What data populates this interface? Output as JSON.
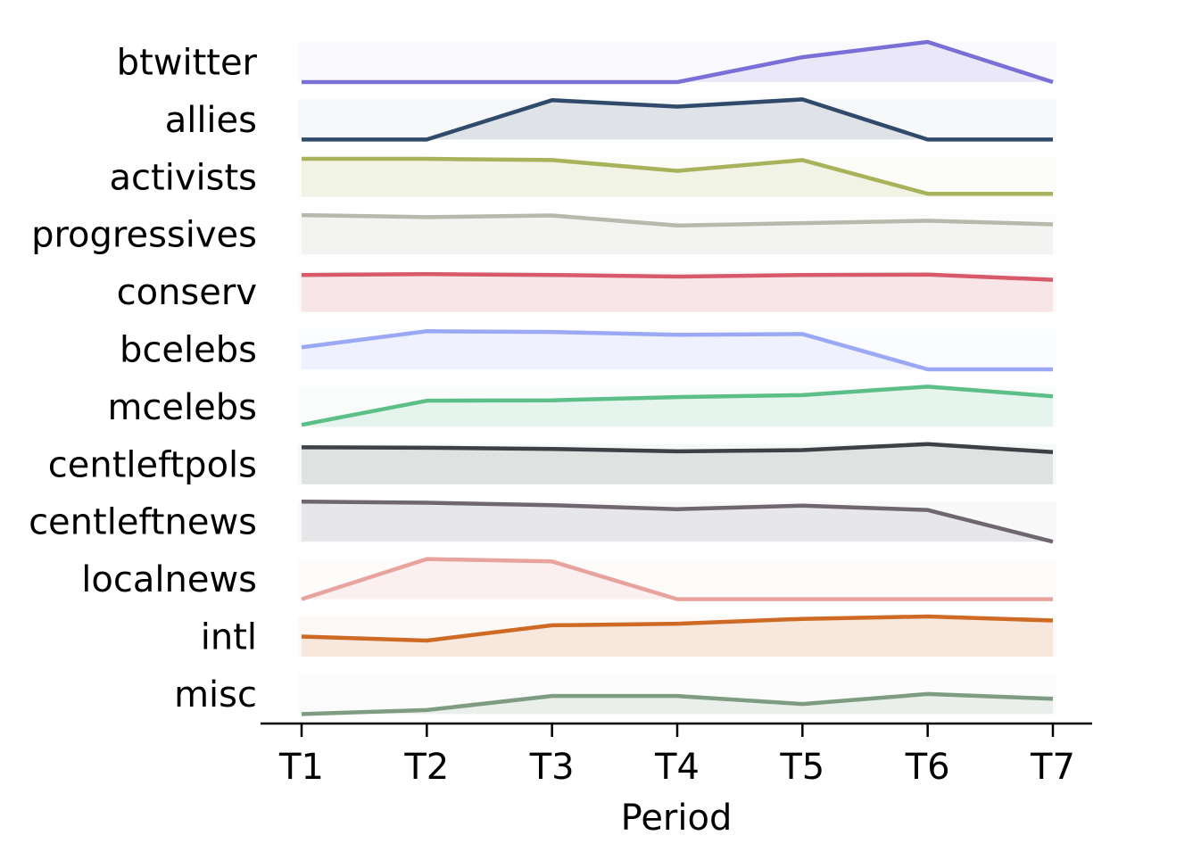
{
  "chart_data": {
    "type": "ridgeline-line",
    "xlabel": "Period",
    "categories": [
      "T1",
      "T2",
      "T3",
      "T4",
      "T5",
      "T6",
      "T7"
    ],
    "ylim": [
      0,
      1
    ],
    "series": [
      {
        "name": "btwitter",
        "color": "#7a6fd6",
        "values": [
          0.0,
          0.0,
          0.0,
          0.0,
          0.62,
          1.0,
          0.0
        ]
      },
      {
        "name": "allies",
        "color": "#2f4a6b",
        "values": [
          0.0,
          0.0,
          0.98,
          0.82,
          1.0,
          0.0,
          0.0
        ]
      },
      {
        "name": "activists",
        "color": "#a8b25a",
        "values": [
          0.95,
          0.95,
          0.92,
          0.65,
          0.92,
          0.08,
          0.08
        ]
      },
      {
        "name": "progressives",
        "color": "#b8b8ad",
        "values": [
          0.98,
          0.93,
          0.97,
          0.72,
          0.78,
          0.84,
          0.75
        ]
      },
      {
        "name": "conserv",
        "color": "#d85a6a",
        "values": [
          0.92,
          0.94,
          0.92,
          0.88,
          0.92,
          0.93,
          0.8
        ]
      },
      {
        "name": "bcelebs",
        "color": "#9aa8f5",
        "values": [
          0.55,
          0.95,
          0.93,
          0.86,
          0.88,
          0.0,
          0.0
        ]
      },
      {
        "name": "mcelebs",
        "color": "#5cbf88",
        "values": [
          0.05,
          0.65,
          0.66,
          0.74,
          0.79,
          1.0,
          0.76
        ]
      },
      {
        "name": "centleftpols",
        "color": "#3d4145",
        "values": [
          0.92,
          0.91,
          0.88,
          0.82,
          0.85,
          1.0,
          0.8
        ]
      },
      {
        "name": "centleftnews",
        "color": "#6f6670",
        "values": [
          1.0,
          0.97,
          0.91,
          0.81,
          0.9,
          0.79,
          0.0
        ]
      },
      {
        "name": "localnews",
        "color": "#e8a49c",
        "values": [
          0.0,
          1.0,
          0.94,
          0.0,
          0.0,
          0.0,
          0.0
        ]
      },
      {
        "name": "intl",
        "color": "#cf6a24",
        "values": [
          0.5,
          0.4,
          0.78,
          0.82,
          0.94,
          1.0,
          0.9
        ]
      },
      {
        "name": "misc",
        "color": "#7e9c82",
        "values": [
          0.0,
          0.1,
          0.45,
          0.45,
          0.25,
          0.5,
          0.38
        ]
      }
    ]
  }
}
